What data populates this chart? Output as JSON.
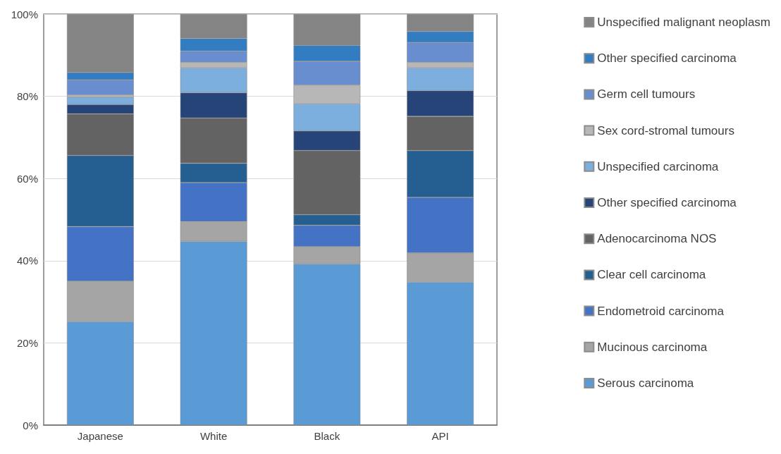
{
  "chart_data": {
    "type": "bar",
    "stacked": true,
    "categories": [
      "Japanese",
      "White",
      "Black",
      "API"
    ],
    "series": [
      {
        "name": "Serous carcinoma",
        "color": "#5b9bd5",
        "values": [
          25.2,
          44.7,
          39.2,
          34.8
        ]
      },
      {
        "name": "Mucinous carcinoma",
        "color": "#a5a5a5",
        "values": [
          9.8,
          4.8,
          4.2,
          7.1
        ]
      },
      {
        "name": "Endometroid carcinoma",
        "color": "#4472c4",
        "values": [
          13.3,
          9.5,
          5.2,
          13.5
        ]
      },
      {
        "name": "Clear cell carcinoma",
        "color": "#255e91",
        "values": [
          17.3,
          4.7,
          2.6,
          11.4
        ]
      },
      {
        "name": "Adenocarcinoma NOS",
        "color": "#636363",
        "values": [
          10.1,
          11.0,
          15.6,
          8.3
        ]
      },
      {
        "name": "Other specified carcinoma",
        "color": "#264478",
        "values": [
          2.3,
          6.2,
          4.8,
          6.3
        ]
      },
      {
        "name": "Unspecified carcinoma",
        "color": "#7cafdd",
        "values": [
          1.8,
          6.0,
          6.6,
          5.5
        ]
      },
      {
        "name": "Sex cord-stromal tumours",
        "color": "#b7b7b7",
        "values": [
          0.5,
          1.4,
          4.5,
          1.4
        ]
      },
      {
        "name": "Germ cell tumours",
        "color": "#698ed0",
        "values": [
          3.7,
          2.7,
          5.8,
          4.8
        ]
      },
      {
        "name": "Other specified carcinoma",
        "color": "#327dc2",
        "values": [
          1.8,
          3.1,
          3.9,
          2.7
        ]
      },
      {
        "name": "Unspecified malignant neoplasm",
        "color": "#848484",
        "values": [
          14.2,
          5.9,
          7.6,
          4.2
        ]
      }
    ],
    "ylim": [
      0,
      100
    ],
    "yticks": [
      {
        "value": 0,
        "label": "0%"
      },
      {
        "value": 20,
        "label": "20%"
      },
      {
        "value": 40,
        "label": "40%"
      },
      {
        "value": 60,
        "label": "60%"
      },
      {
        "value": 80,
        "label": "80%"
      },
      {
        "value": 100,
        "label": "100%"
      }
    ],
    "grid": "y",
    "legend": "right"
  }
}
